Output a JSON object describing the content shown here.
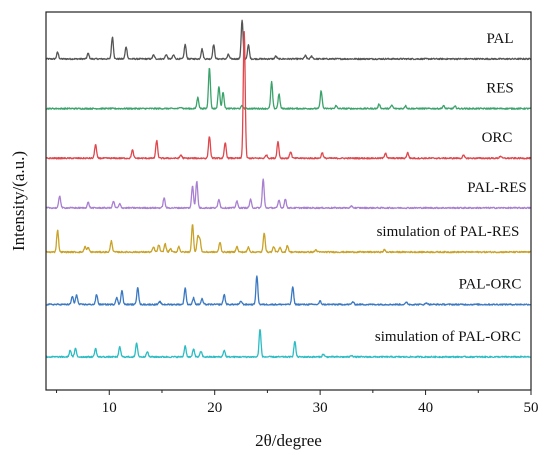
{
  "chart_data": {
    "type": "line",
    "title": "",
    "xlabel": "2θ/degree",
    "ylabel": "Intensity/(a.u.)",
    "xlim": [
      4,
      50
    ],
    "x_ticks": [
      "10",
      "20",
      "30",
      "40",
      "50"
    ],
    "y_ticks_shown": false,
    "grid": false,
    "legend": "none",
    "series": [
      {
        "name": "PAL",
        "color": "#555555",
        "baseline": 6.0,
        "peaks": [
          [
            5.1,
            0.12
          ],
          [
            8.0,
            0.1
          ],
          [
            10.3,
            0.4
          ],
          [
            11.6,
            0.22
          ],
          [
            14.2,
            0.07
          ],
          [
            15.4,
            0.08
          ],
          [
            16.1,
            0.07
          ],
          [
            17.2,
            0.26
          ],
          [
            18.8,
            0.18
          ],
          [
            19.9,
            0.26
          ],
          [
            21.3,
            0.08
          ],
          [
            22.6,
            0.7
          ],
          [
            23.2,
            0.25
          ],
          [
            25.8,
            0.05
          ],
          [
            28.6,
            0.06
          ],
          [
            29.2,
            0.05
          ]
        ]
      },
      {
        "name": "RES",
        "color": "#3aa36b",
        "baseline": 5.1,
        "peaks": [
          [
            16.8,
            0.03
          ],
          [
            18.4,
            0.2
          ],
          [
            19.5,
            0.75
          ],
          [
            20.4,
            0.4
          ],
          [
            20.8,
            0.3
          ],
          [
            22.6,
            0.05
          ],
          [
            25.4,
            0.48
          ],
          [
            26.1,
            0.26
          ],
          [
            30.1,
            0.32
          ],
          [
            31.5,
            0.05
          ],
          [
            35.6,
            0.08
          ],
          [
            36.8,
            0.06
          ],
          [
            38.1,
            0.05
          ],
          [
            41.7,
            0.05
          ],
          [
            42.8,
            0.04
          ]
        ]
      },
      {
        "name": "ORC",
        "color": "#e0474c",
        "baseline": 4.2,
        "peaks": [
          [
            8.7,
            0.25
          ],
          [
            12.2,
            0.15
          ],
          [
            14.5,
            0.32
          ],
          [
            16.8,
            0.06
          ],
          [
            19.5,
            0.4
          ],
          [
            21.0,
            0.28
          ],
          [
            22.8,
            2.3
          ],
          [
            24.9,
            0.06
          ],
          [
            26.0,
            0.3
          ],
          [
            27.2,
            0.12
          ],
          [
            30.2,
            0.1
          ],
          [
            36.2,
            0.1
          ],
          [
            38.3,
            0.1
          ],
          [
            43.6,
            0.05
          ],
          [
            47.1,
            0.04
          ]
        ]
      },
      {
        "name": "PAL-RES",
        "color": "#a87fd1",
        "baseline": 3.3,
        "peaks": [
          [
            5.3,
            0.22
          ],
          [
            8.0,
            0.1
          ],
          [
            10.4,
            0.12
          ],
          [
            11.0,
            0.07
          ],
          [
            15.2,
            0.18
          ],
          [
            17.9,
            0.4
          ],
          [
            18.3,
            0.48
          ],
          [
            20.4,
            0.16
          ],
          [
            22.1,
            0.12
          ],
          [
            23.4,
            0.15
          ],
          [
            24.6,
            0.52
          ],
          [
            26.1,
            0.14
          ],
          [
            26.7,
            0.16
          ],
          [
            33.0,
            0.03
          ]
        ]
      },
      {
        "name": "simulation of PAL-RES",
        "color": "#c9a227",
        "baseline": 2.5,
        "peaks": [
          [
            5.1,
            0.4
          ],
          [
            7.7,
            0.1
          ],
          [
            8.0,
            0.08
          ],
          [
            10.2,
            0.2
          ],
          [
            14.2,
            0.09
          ],
          [
            14.7,
            0.13
          ],
          [
            15.3,
            0.15
          ],
          [
            15.8,
            0.06
          ],
          [
            16.6,
            0.1
          ],
          [
            17.9,
            0.5
          ],
          [
            18.4,
            0.28
          ],
          [
            18.6,
            0.22
          ],
          [
            20.5,
            0.18
          ],
          [
            22.1,
            0.1
          ],
          [
            23.2,
            0.09
          ],
          [
            24.7,
            0.35
          ],
          [
            25.6,
            0.1
          ],
          [
            26.2,
            0.08
          ],
          [
            26.9,
            0.12
          ],
          [
            29.6,
            0.04
          ],
          [
            36.1,
            0.04
          ]
        ]
      },
      {
        "name": "PAL-ORC",
        "color": "#3a78c2",
        "baseline": 1.55,
        "peaks": [
          [
            6.5,
            0.15
          ],
          [
            6.9,
            0.18
          ],
          [
            8.8,
            0.18
          ],
          [
            10.7,
            0.13
          ],
          [
            11.2,
            0.26
          ],
          [
            12.7,
            0.32
          ],
          [
            14.8,
            0.05
          ],
          [
            17.2,
            0.3
          ],
          [
            18.0,
            0.12
          ],
          [
            18.8,
            0.1
          ],
          [
            20.9,
            0.18
          ],
          [
            22.5,
            0.06
          ],
          [
            24.0,
            0.52
          ],
          [
            27.4,
            0.32
          ],
          [
            30.0,
            0.06
          ],
          [
            33.1,
            0.05
          ],
          [
            38.2,
            0.04
          ],
          [
            40.1,
            0.03
          ]
        ]
      },
      {
        "name": "simulation of PAL-ORC",
        "color": "#2bbcc4",
        "baseline": 0.6,
        "peaks": [
          [
            6.3,
            0.12
          ],
          [
            6.8,
            0.15
          ],
          [
            8.7,
            0.15
          ],
          [
            11.0,
            0.18
          ],
          [
            12.6,
            0.25
          ],
          [
            13.6,
            0.1
          ],
          [
            17.2,
            0.2
          ],
          [
            18.0,
            0.14
          ],
          [
            18.7,
            0.1
          ],
          [
            20.9,
            0.12
          ],
          [
            24.3,
            0.5
          ],
          [
            27.6,
            0.28
          ],
          [
            30.3,
            0.05
          ],
          [
            33.0,
            0.03
          ]
        ]
      }
    ]
  }
}
